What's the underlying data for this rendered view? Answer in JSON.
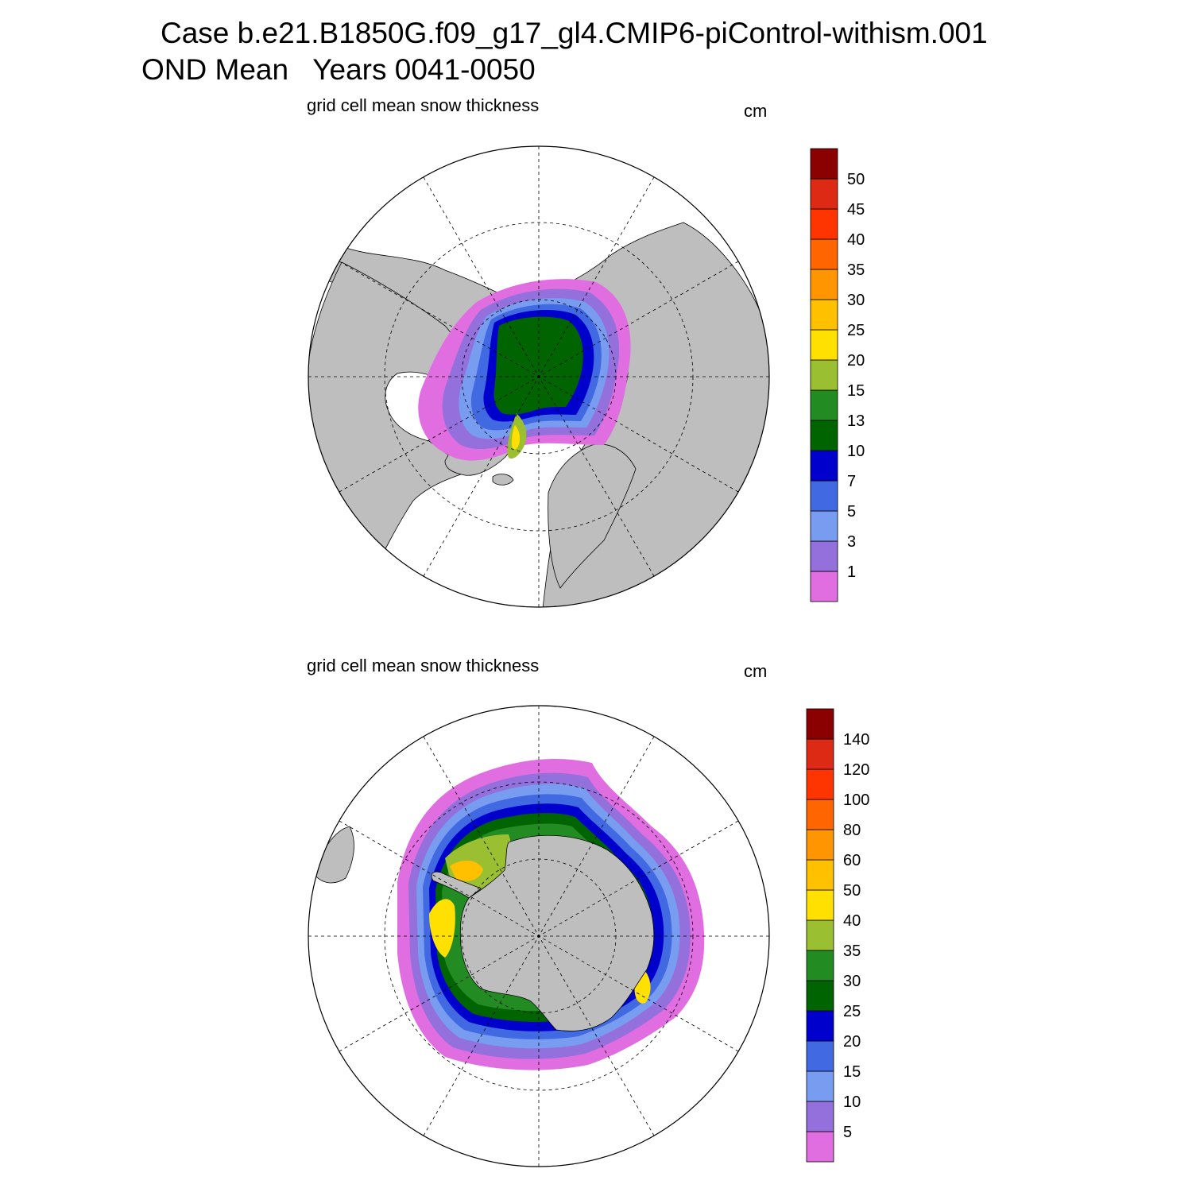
{
  "title": {
    "line1": "Case b.e21.B1850G.f09_g17_gl4.CMIP6-piControl-withism.001",
    "line2": "OND Mean   Years 0041-0050"
  },
  "colors": {
    "land": "#bebebe",
    "ocean_no_ice": "#ffffff",
    "scale": [
      "#e16ee0",
      "#9370db",
      "#789cf0",
      "#4169e1",
      "#0000cd",
      "#006400",
      "#228b22",
      "#9ac031",
      "#ffe000",
      "#ffc000",
      "#ff9500",
      "#ff6500",
      "#ff3500",
      "#dc2a14",
      "#8b0000"
    ]
  },
  "panels": [
    {
      "id": "north",
      "subtitle": "grid cell mean snow thickness",
      "unit": "cm",
      "hemisphere": "Northern",
      "colorbar_labels": [
        "1",
        "3",
        "5",
        "7",
        "10",
        "13",
        "15",
        "20",
        "25",
        "30",
        "35",
        "40",
        "45",
        "50"
      ]
    },
    {
      "id": "south",
      "subtitle": "grid cell mean snow thickness",
      "unit": "cm",
      "hemisphere": "Southern",
      "colorbar_labels": [
        "5",
        "10",
        "15",
        "20",
        "25",
        "30",
        "35",
        "40",
        "50",
        "60",
        "80",
        "100",
        "120",
        "140"
      ]
    }
  ]
}
